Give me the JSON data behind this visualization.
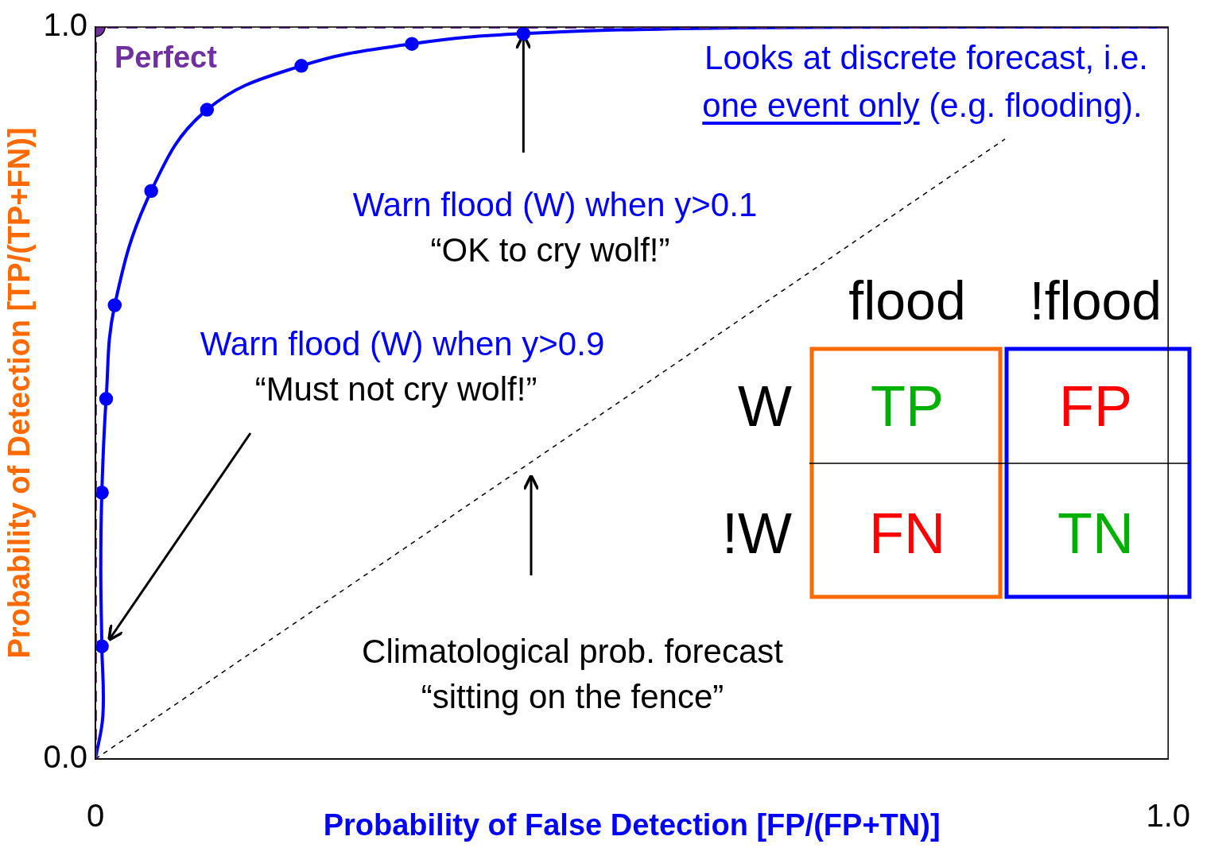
{
  "chart_data": {
    "type": "line",
    "xlabel": "Probability of False Detection [FP/(FP+TN)]",
    "ylabel": "Probability of Detection [TP/(TP+FN)]",
    "xlim": [
      0,
      1
    ],
    "ylim": [
      0,
      1
    ],
    "xticks": [
      {
        "value": 0,
        "label": "0"
      },
      {
        "value": 1,
        "label": "1.0"
      }
    ],
    "yticks": [
      {
        "value": 0,
        "label": "0.0"
      },
      {
        "value": 1,
        "label": "1.0"
      }
    ],
    "grid": false,
    "legend": false,
    "series": [
      {
        "type": "line",
        "name": "Perfect",
        "color": "#7030a0",
        "x": [
          0,
          0,
          1
        ],
        "values": [
          0,
          1,
          1
        ],
        "line_style": "dashed",
        "marker": "none"
      },
      {
        "type": "scatter",
        "color": "#7030a0",
        "x": [
          0
        ],
        "values": [
          1
        ],
        "marker": "circle"
      },
      {
        "type": "line",
        "color": "#0000ff",
        "x": [
          0,
          0.007,
          0.006,
          0.005,
          0.006,
          0.01,
          0.018,
          0.052,
          0.104,
          0.192,
          0.295,
          0.399,
          0.6,
          0.8,
          1
        ],
        "values": [
          0,
          0.06,
          0.154,
          0.26,
          0.364,
          0.492,
          0.62,
          0.776,
          0.887,
          0.947,
          0.977,
          0.991,
          0.999,
          1,
          1
        ],
        "marker": "none"
      },
      {
        "type": "scatter",
        "color": "#0000ff",
        "x": [
          0.006,
          0.006,
          0.01,
          0.018,
          0.052,
          0.104,
          0.192,
          0.295,
          0.399
        ],
        "values": [
          0.154,
          0.364,
          0.492,
          0.62,
          0.776,
          0.887,
          0.947,
          0.977,
          0.991
        ],
        "marker": "circle"
      },
      {
        "type": "line",
        "color": "#000000",
        "x": [
          0,
          0.848
        ],
        "values": [
          0,
          0.847
        ],
        "line_style": "dashed",
        "marker": "none"
      }
    ],
    "annotations": [
      "Looks at discrete forecast, i.e.",
      "one event only (e.g. flooding).",
      {
        "text": "Warn flood (W) when y>0.1",
        "x": 0.399,
        "y": 0.991
      },
      "“OK to cry wolf!”",
      "Warn flood (W) when y>0.9",
      "“Must not cry wolf!”",
      "Climatological prob. forecast",
      "“sitting on the fence”",
      "flood",
      "!flood",
      "W",
      "!W",
      "TP",
      "FP",
      "FN",
      "TN"
    ]
  }
}
